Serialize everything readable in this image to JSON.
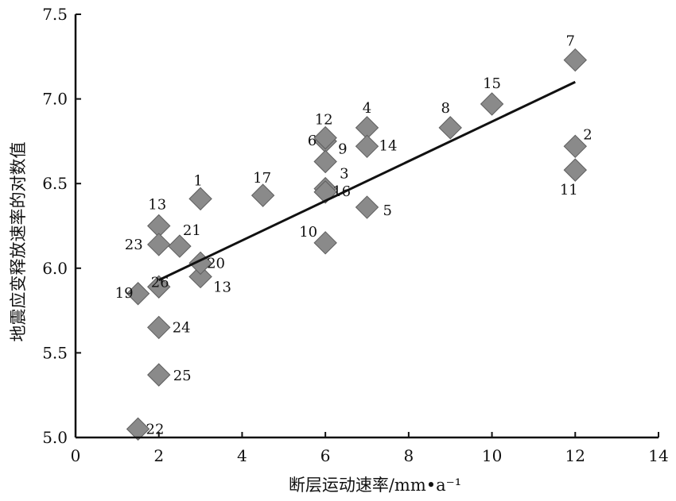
{
  "chart_data": {
    "type": "scatter",
    "xlabel": "断层运动速率/mm•a⁻¹",
    "ylabel": "地震应变释放速率的对数值",
    "xlim": [
      0,
      14
    ],
    "ylim": [
      5.0,
      7.5
    ],
    "xticks": [
      "0",
      "2",
      "4",
      "6",
      "8",
      "10",
      "12",
      "14"
    ],
    "yticks": [
      "5.0",
      "5.5",
      "6.0",
      "6.5",
      "7.0",
      "7.5"
    ],
    "grid": false,
    "legend": "none",
    "marker": "diamond",
    "points": [
      {
        "label": "1",
        "x": 3.0,
        "y": 6.41
      },
      {
        "label": "2",
        "x": 12.0,
        "y": 6.72
      },
      {
        "label": "3",
        "x": 6.0,
        "y": 6.47
      },
      {
        "label": "4",
        "x": 7.0,
        "y": 6.83
      },
      {
        "label": "5",
        "x": 7.0,
        "y": 6.36
      },
      {
        "label": "6",
        "x": 6.0,
        "y": 6.75
      },
      {
        "label": "7",
        "x": 12.0,
        "y": 7.23
      },
      {
        "label": "8",
        "x": 9.0,
        "y": 6.83
      },
      {
        "label": "9",
        "x": 6.0,
        "y": 6.63
      },
      {
        "label": "10",
        "x": 6.0,
        "y": 6.15
      },
      {
        "label": "11",
        "x": 12.0,
        "y": 6.58
      },
      {
        "label": "12",
        "x": 6.0,
        "y": 6.77
      },
      {
        "label": "13",
        "x": 2.0,
        "y": 6.25
      },
      {
        "label": "13",
        "x": 3.0,
        "y": 5.95
      },
      {
        "label": "14",
        "x": 7.0,
        "y": 6.72
      },
      {
        "label": "15",
        "x": 10.0,
        "y": 6.97
      },
      {
        "label": "16",
        "x": 6.0,
        "y": 6.45
      },
      {
        "label": "17",
        "x": 4.5,
        "y": 6.43
      },
      {
        "label": "19",
        "x": 1.5,
        "y": 5.85
      },
      {
        "label": "20",
        "x": 3.0,
        "y": 6.03
      },
      {
        "label": "21",
        "x": 2.5,
        "y": 6.13
      },
      {
        "label": "22",
        "x": 1.5,
        "y": 5.05
      },
      {
        "label": "23",
        "x": 2.0,
        "y": 6.14
      },
      {
        "label": "24",
        "x": 2.0,
        "y": 5.65
      },
      {
        "label": "25",
        "x": 2.0,
        "y": 5.37
      },
      {
        "label": "26",
        "x": 2.0,
        "y": 5.89
      }
    ],
    "trendline": {
      "x": [
        2.0,
        12.0
      ],
      "y": [
        5.93,
        7.1
      ]
    },
    "colors": {
      "marker": "#8a8a8a",
      "marker_edge": "#5e5e5e",
      "line": "#111111",
      "axis": "#111111"
    }
  }
}
